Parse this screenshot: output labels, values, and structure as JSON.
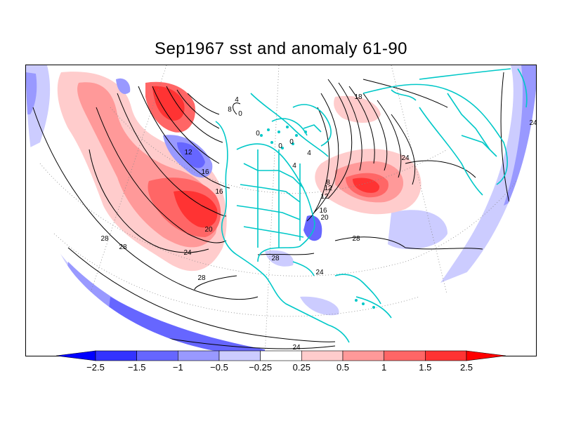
{
  "title": "Sep1967 sst and anomaly 61-90",
  "colorbar": {
    "labels": [
      "-2.5",
      "-1.5",
      "-1",
      "-0.5",
      "-0.25",
      "0.25",
      "0.5",
      "1",
      "1.5",
      "2.5"
    ],
    "colors": [
      "#0000ff",
      "#3333ff",
      "#6666ff",
      "#9999ff",
      "#ccccff",
      "#ffffff",
      "#ffcccc",
      "#ff9999",
      "#ff6666",
      "#ff3333",
      "#ff0000"
    ]
  },
  "contour_labels": [
    "28",
    "28",
    "24",
    "20",
    "16",
    "16",
    "12",
    "8",
    "4",
    "0",
    "0",
    "0",
    "0",
    "4",
    "4",
    "8",
    "12",
    "12",
    "16",
    "20",
    "24",
    "28",
    "28",
    "28",
    "24",
    "24",
    "18",
    "24"
  ],
  "colors": {
    "coastline": "#00c8c8",
    "contour": "#000000",
    "positive": "#ff3333",
    "negative": "#3333ff"
  }
}
